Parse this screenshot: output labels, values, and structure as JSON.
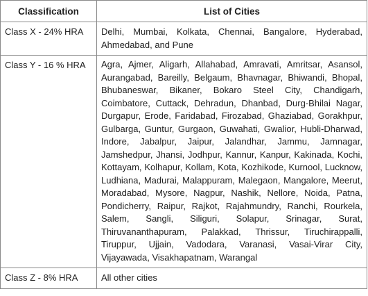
{
  "table": {
    "headers": [
      "Classification",
      "List of Cities"
    ],
    "rows": [
      {
        "classification": "Class X - 24% HRA",
        "cities": "Delhi, Mumbai, Kolkata, Chennai, Bangalore, Hyderabad, Ahmedabad, and Pune"
      },
      {
        "classification": "Class Y - 16 % HRA",
        "cities": "Agra, Ajmer, Aligarh, Allahabad, Amravati, Amritsar, Asansol, Aurangabad, Bareilly, Belgaum, Bhavnagar, Bhiwandi, Bhopal, Bhubaneswar, Bikaner, Bokaro Steel City, Chandigarh, Coimbatore, Cuttack, Dehradun, Dhanbad, Durg-Bhilai Nagar, Durgapur, Erode, Faridabad, Firozabad, Ghaziabad, Gorakhpur, Gulbarga, Guntur, Gurgaon, Guwahati, Gwalior, Hubli-Dharwad, Indore, Jabalpur, Jaipur, Jalandhar, Jammu, Jamnagar, Jamshedpur, Jhansi, Jodhpur, Kannur, Kanpur, Kakinada, Kochi, Kottayam, Kolhapur, Kollam, Kota, Kozhikode, Kurnool, Lucknow, Ludhiana, Madurai, Malappuram, Malegaon, Mangalore, Meerut, Moradabad, Mysore, Nagpur, Nashik, Nellore, Noida, Patna, Pondicherry, Raipur, Rajkot, Rajahmundry, Ranchi, Rourkela, Salem, Sangli, Siliguri, Solapur, Srinagar, Surat, Thiruvananthapuram, Palakkad, Thrissur, Tiruchirappalli, Tiruppur, Ujjain, Vadodara, Varanasi, Vasai-Virar City, Vijayawada, Visakhapatnam, Warangal"
      },
      {
        "classification": "Class Z - 8% HRA",
        "cities": "All other cities"
      }
    ]
  }
}
